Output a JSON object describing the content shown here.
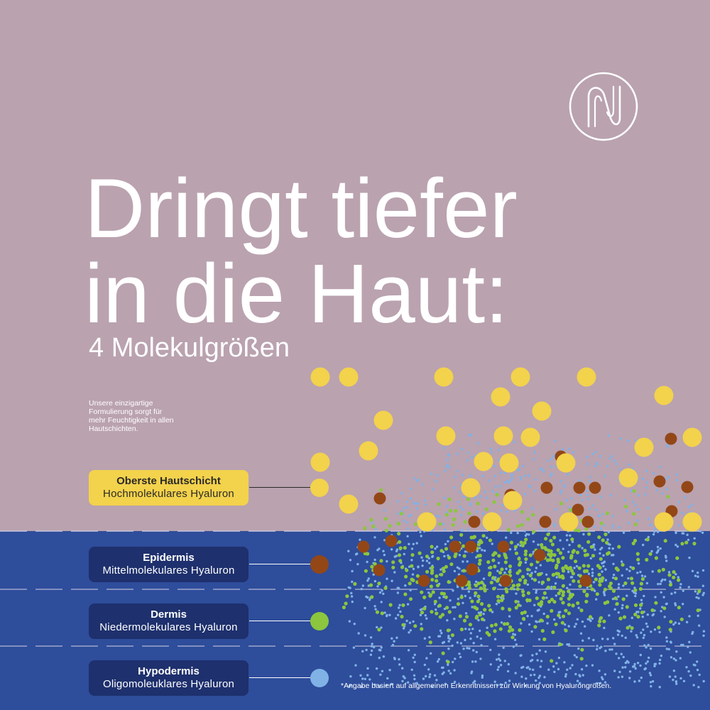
{
  "brand": {
    "logo_mark": "N"
  },
  "headline": {
    "line1": "Dringt tiefer",
    "line2": "in die Haut:"
  },
  "subtitle": "4 Molekulgrößen",
  "intro": {
    "lines": [
      "Unsere einzigartige",
      "Formulierung sorgt für",
      "mehr Feuchtigkeit in allen",
      "Hautschichten."
    ]
  },
  "layers": [
    {
      "name": "Oberste Hautschicht",
      "molecule": "Hochmolekulares Hyaluron",
      "color": "#F3D24C",
      "icon": "yellow-molecule-dot"
    },
    {
      "name": "Epidermis",
      "molecule": "Mittelmolekulares Hyaluron",
      "color": "#934717",
      "icon": "brown-molecule-dot"
    },
    {
      "name": "Dermis",
      "molecule": "Niedermolekulares Hyaluron",
      "color": "#8CC63F",
      "icon": "green-molecule-dot"
    },
    {
      "name": "Hypodermis",
      "molecule": "Oligomoleuklares Hyaluron",
      "color": "#80B2E6",
      "icon": "blue-molecule-dot"
    }
  ],
  "footnote": "*Angabe basiert auf allgemeinen Erkenntnissen zur Wirkung von Hyalurongrößen.",
  "colors": {
    "background_upper": "#BAA2AF",
    "background_lower": "#2E4D9B",
    "label_box": "#1E306D",
    "divider": "#C9C6DD"
  }
}
